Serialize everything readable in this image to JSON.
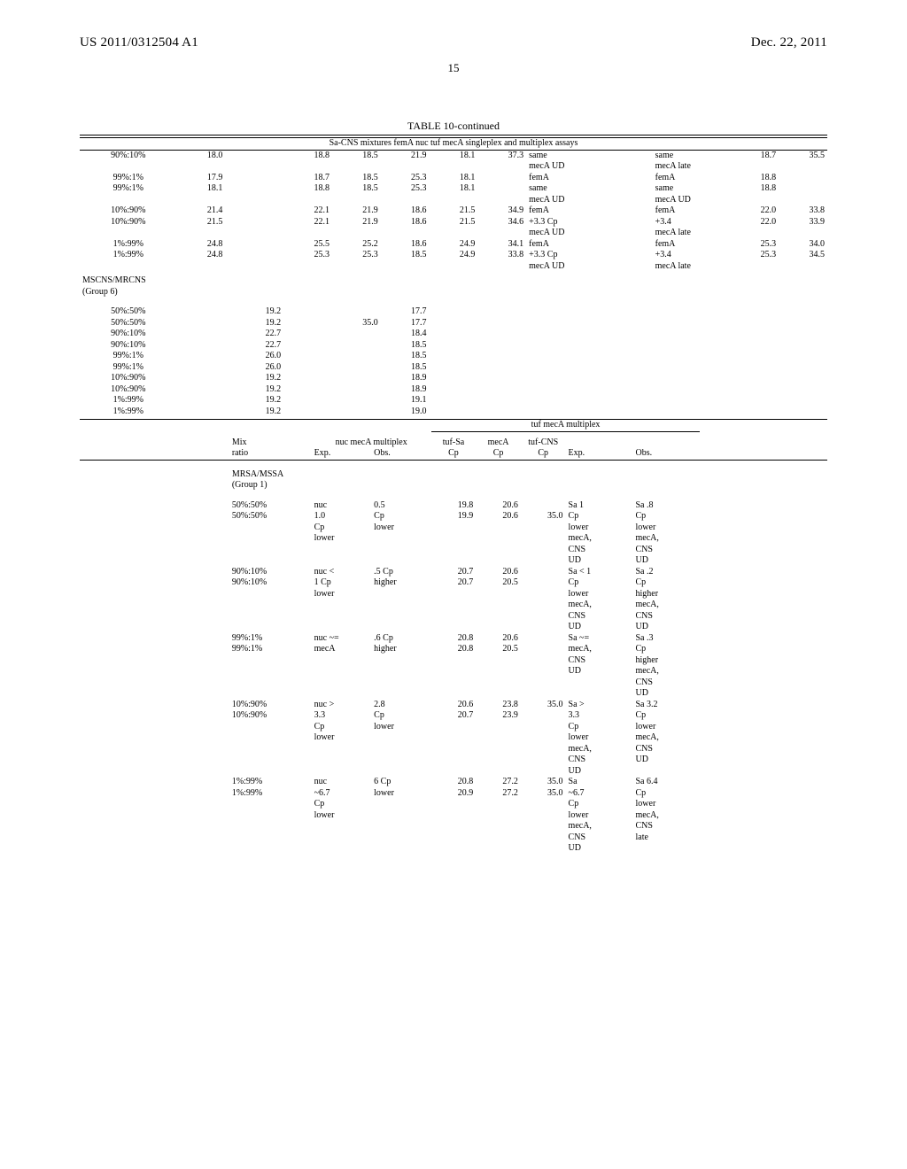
{
  "header": {
    "pub_no": "US 2011/0312504 A1",
    "pub_date": "Dec. 22, 2011"
  },
  "page_number": "15",
  "table_title": "TABLE 10-continued",
  "table_subtitle": "Sa-CNS mixtures femA nuc tuf mecA singleplex and multiplex assays",
  "t1_rows": [
    {
      "mix": "90%:10%",
      "v": [
        "18.0",
        "",
        "18.8",
        "18.5",
        "21.9",
        "18.1",
        "37.3",
        "same, mecA UD",
        "",
        "same, mecA late",
        "18.7",
        "35.5"
      ]
    },
    {
      "mix": "99%:1%",
      "v": [
        "17.9",
        "",
        "18.7",
        "18.5",
        "25.3",
        "18.1",
        "",
        "femA",
        "",
        "femA",
        "18.8",
        ""
      ]
    },
    {
      "mix": "99%:1%",
      "v": [
        "18.1",
        "",
        "18.8",
        "18.5",
        "25.3",
        "18.1",
        "",
        "same, mecA UD",
        "",
        "same, mecA UD",
        "18.8",
        ""
      ]
    },
    {
      "mix": "10%:90%",
      "v": [
        "21.4",
        "",
        "22.1",
        "21.9",
        "18.6",
        "21.5",
        "34.9",
        "femA",
        "",
        "femA",
        "22.0",
        "33.8"
      ]
    },
    {
      "mix": "10%:90%",
      "v": [
        "21.5",
        "",
        "22.1",
        "21.9",
        "18.6",
        "21.5",
        "34.6",
        "+3.3 Cp, mecA UD",
        "",
        "+3.4, mecA late",
        "22.0",
        "33.9"
      ]
    },
    {
      "mix": "1%:99%",
      "v": [
        "24.8",
        "",
        "25.5",
        "25.2",
        "18.6",
        "24.9",
        "34.1",
        "femA",
        "",
        "femA",
        "25.3",
        "34.0"
      ]
    },
    {
      "mix": "1%:99%",
      "v": [
        "24.8",
        "",
        "25.3",
        "25.3",
        "18.5",
        "24.9",
        "33.8",
        "+3.3 Cp, mecA UD",
        "",
        "+3.4, mecA late",
        "25.3",
        "34.5"
      ]
    }
  ],
  "group6_label": "MSCNS/MRCNS (Group 6)",
  "group6_rows": [
    {
      "mix": "50%:50%",
      "a": "19.2",
      "b": "",
      "c": "17.7"
    },
    {
      "mix": "50%:50%",
      "a": "19.2",
      "b": "35.0",
      "c": "17.7"
    },
    {
      "mix": "90%:10%",
      "a": "22.7",
      "b": "",
      "c": "18.4"
    },
    {
      "mix": "90%:10%",
      "a": "22.7",
      "b": "",
      "c": "18.5"
    },
    {
      "mix": "99%:1%",
      "a": "26.0",
      "b": "",
      "c": "18.5"
    },
    {
      "mix": "99%:1%",
      "a": "26.0",
      "b": "",
      "c": "18.5"
    },
    {
      "mix": "10%:90%",
      "a": "19.2",
      "b": "",
      "c": "18.9"
    },
    {
      "mix": "10%:90%",
      "a": "19.2",
      "b": "",
      "c": "18.9"
    },
    {
      "mix": "1%:99%",
      "a": "19.2",
      "b": "",
      "c": "19.1"
    },
    {
      "mix": "1%:99%",
      "a": "19.2",
      "b": "",
      "c": "19.0"
    }
  ],
  "t2_head": {
    "tuf_multiplex": "tuf mecA multiplex",
    "mix": "Mix",
    "nuc_multi": "nuc mecA multiplex",
    "tuf_sa": "tuf-Sa",
    "mecA": "mecA",
    "tuf_cns": "tuf-CNS",
    "ratio": "ratio",
    "exp": "Exp.",
    "obs": "Obs.",
    "cp": "Cp"
  },
  "group1_label": "MRSA/MSSA (Group 1)",
  "t2_blocks": [
    {
      "rows": [
        {
          "mix": "50%:50%",
          "exp": "nuc",
          "obs": "0.5",
          "tufSa": "19.8",
          "mecA": "20.6",
          "tufCNS": "",
          "exp2": "Sa 1",
          "obs2": "Sa .8"
        },
        {
          "mix": "50%:50%",
          "exp": "1.0",
          "obs": "Cp",
          "tufSa": "19.9",
          "mecA": "20.6",
          "tufCNS": "35.0",
          "exp2": "Cp",
          "obs2": "Cp"
        },
        {
          "mix": "",
          "exp": "Cp",
          "obs": "lower",
          "tufSa": "",
          "mecA": "",
          "tufCNS": "",
          "exp2": "lower",
          "obs2": "lower"
        },
        {
          "mix": "",
          "exp": "lower",
          "obs": "",
          "tufSa": "",
          "mecA": "",
          "tufCNS": "",
          "exp2": "mecA,",
          "obs2": "mecA,"
        },
        {
          "mix": "",
          "exp": "",
          "obs": "",
          "tufSa": "",
          "mecA": "",
          "tufCNS": "",
          "exp2": "CNS",
          "obs2": "CNS"
        },
        {
          "mix": "",
          "exp": "",
          "obs": "",
          "tufSa": "",
          "mecA": "",
          "tufCNS": "",
          "exp2": "UD",
          "obs2": "UD"
        }
      ]
    },
    {
      "rows": [
        {
          "mix": "90%:10%",
          "exp": "nuc <",
          "obs": ".5 Cp",
          "tufSa": "20.7",
          "mecA": "20.6",
          "tufCNS": "",
          "exp2": "Sa < 1",
          "obs2": "Sa .2"
        },
        {
          "mix": "90%:10%",
          "exp": "1 Cp",
          "obs": "higher",
          "tufSa": "20.7",
          "mecA": "20.5",
          "tufCNS": "",
          "exp2": "Cp",
          "obs2": "Cp"
        },
        {
          "mix": "",
          "exp": "lower",
          "obs": "",
          "tufSa": "",
          "mecA": "",
          "tufCNS": "",
          "exp2": "lower",
          "obs2": "higher"
        },
        {
          "mix": "",
          "exp": "",
          "obs": "",
          "tufSa": "",
          "mecA": "",
          "tufCNS": "",
          "exp2": "mecA,",
          "obs2": "mecA,"
        },
        {
          "mix": "",
          "exp": "",
          "obs": "",
          "tufSa": "",
          "mecA": "",
          "tufCNS": "",
          "exp2": "CNS",
          "obs2": "CNS"
        },
        {
          "mix": "",
          "exp": "",
          "obs": "",
          "tufSa": "",
          "mecA": "",
          "tufCNS": "",
          "exp2": "UD",
          "obs2": "UD"
        }
      ]
    },
    {
      "rows": [
        {
          "mix": "99%:1%",
          "exp": "nuc ~=",
          "obs": ".6 Cp",
          "tufSa": "20.8",
          "mecA": "20.6",
          "tufCNS": "",
          "exp2": "Sa ~=",
          "obs2": "Sa .3"
        },
        {
          "mix": "99%:1%",
          "exp": "mecA",
          "obs": "higher",
          "tufSa": "20.8",
          "mecA": "20.5",
          "tufCNS": "",
          "exp2": "mecA,",
          "obs2": "Cp"
        },
        {
          "mix": "",
          "exp": "",
          "obs": "",
          "tufSa": "",
          "mecA": "",
          "tufCNS": "",
          "exp2": "CNS",
          "obs2": "higher"
        },
        {
          "mix": "",
          "exp": "",
          "obs": "",
          "tufSa": "",
          "mecA": "",
          "tufCNS": "",
          "exp2": "UD",
          "obs2": "mecA,"
        },
        {
          "mix": "",
          "exp": "",
          "obs": "",
          "tufSa": "",
          "mecA": "",
          "tufCNS": "",
          "exp2": "",
          "obs2": "CNS"
        },
        {
          "mix": "",
          "exp": "",
          "obs": "",
          "tufSa": "",
          "mecA": "",
          "tufCNS": "",
          "exp2": "",
          "obs2": "UD"
        }
      ]
    },
    {
      "rows": [
        {
          "mix": "10%:90%",
          "exp": "nuc >",
          "obs": "2.8",
          "tufSa": "20.6",
          "mecA": "23.8",
          "tufCNS": "35.0",
          "exp2": "Sa >",
          "obs2": "Sa 3.2"
        },
        {
          "mix": "10%:90%",
          "exp": "3.3",
          "obs": "Cp",
          "tufSa": "20.7",
          "mecA": "23.9",
          "tufCNS": "",
          "exp2": "3.3",
          "obs2": "Cp"
        },
        {
          "mix": "",
          "exp": "Cp",
          "obs": "lower",
          "tufSa": "",
          "mecA": "",
          "tufCNS": "",
          "exp2": "Cp",
          "obs2": "lower"
        },
        {
          "mix": "",
          "exp": "lower",
          "obs": "",
          "tufSa": "",
          "mecA": "",
          "tufCNS": "",
          "exp2": "lower",
          "obs2": "mecA,"
        },
        {
          "mix": "",
          "exp": "",
          "obs": "",
          "tufSa": "",
          "mecA": "",
          "tufCNS": "",
          "exp2": "mecA,",
          "obs2": "CNS"
        },
        {
          "mix": "",
          "exp": "",
          "obs": "",
          "tufSa": "",
          "mecA": "",
          "tufCNS": "",
          "exp2": "CNS",
          "obs2": "UD"
        },
        {
          "mix": "",
          "exp": "",
          "obs": "",
          "tufSa": "",
          "mecA": "",
          "tufCNS": "",
          "exp2": "UD",
          "obs2": ""
        }
      ]
    },
    {
      "rows": [
        {
          "mix": "1%:99%",
          "exp": "nuc",
          "obs": "6 Cp",
          "tufSa": "20.8",
          "mecA": "27.2",
          "tufCNS": "35.0",
          "exp2": "Sa",
          "obs2": "Sa 6.4"
        },
        {
          "mix": "1%:99%",
          "exp": "~6.7",
          "obs": "lower",
          "tufSa": "20.9",
          "mecA": "27.2",
          "tufCNS": "35.0",
          "exp2": "~6.7",
          "obs2": "Cp"
        },
        {
          "mix": "",
          "exp": "Cp",
          "obs": "",
          "tufSa": "",
          "mecA": "",
          "tufCNS": "",
          "exp2": "Cp",
          "obs2": "lower"
        },
        {
          "mix": "",
          "exp": "lower",
          "obs": "",
          "tufSa": "",
          "mecA": "",
          "tufCNS": "",
          "exp2": "lower",
          "obs2": "mecA,"
        },
        {
          "mix": "",
          "exp": "",
          "obs": "",
          "tufSa": "",
          "mecA": "",
          "tufCNS": "",
          "exp2": "mecA,",
          "obs2": "CNS"
        },
        {
          "mix": "",
          "exp": "",
          "obs": "",
          "tufSa": "",
          "mecA": "",
          "tufCNS": "",
          "exp2": "CNS",
          "obs2": "late"
        },
        {
          "mix": "",
          "exp": "",
          "obs": "",
          "tufSa": "",
          "mecA": "",
          "tufCNS": "",
          "exp2": "UD",
          "obs2": ""
        }
      ]
    }
  ]
}
